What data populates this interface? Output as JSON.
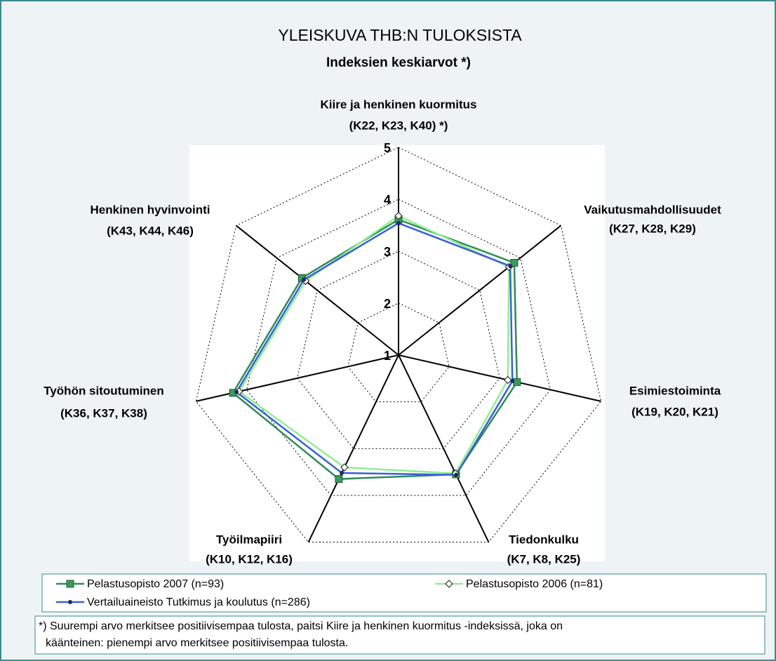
{
  "chart_data": {
    "type": "radar",
    "title": "YLEISKUVA THB:N TULOKSISTA",
    "subtitle": "Indeksien keskiarvot *)",
    "categories": [
      [
        "Kiire ja henkinen kuormitus",
        "(K22, K23, K40) *)"
      ],
      [
        "Vaikutusmahdollisuudet",
        "(K27, K28, K29)"
      ],
      [
        "Esimiestoiminta",
        "(K19, K20, K21)"
      ],
      [
        "Tiedonkulku",
        "(K7, K8, K25)"
      ],
      [
        "Työilmapiiri",
        "(K10, K12, K16)"
      ],
      [
        "Työhön sitoutuminen",
        "(K36, K37, K38)"
      ],
      [
        "Henkinen hyvinvointi",
        "(K43, K44, K46)"
      ]
    ],
    "series": [
      {
        "name": "Pelastusopisto 2007 (n=93)",
        "color": "#2e8b57",
        "marker": "square",
        "values": [
          3.61,
          3.85,
          3.34,
          3.55,
          3.65,
          4.27,
          3.38
        ]
      },
      {
        "name": "Pelastusopisto 2006 (n=81)",
        "color": "#90ee90",
        "marker": "diamond",
        "values": [
          3.68,
          3.72,
          3.16,
          3.53,
          3.4,
          4.15,
          3.29
        ]
      },
      {
        "name": "Vertailuaineisto Tutkimus ja koulutus (n=286)",
        "color": "#3a5fd9",
        "marker": "circle",
        "values": [
          3.54,
          3.75,
          3.25,
          3.56,
          3.52,
          4.2,
          3.33
        ]
      }
    ],
    "ylim": [
      1,
      5
    ],
    "yticks": [
      1,
      2,
      3,
      4,
      5
    ],
    "grid": true,
    "footnote": [
      "*) Suurempi arvo merkitsee positiivisempaa tulosta, paitsi Kiire ja henkinen kuormitus -indeksissä, joka on",
      "kääntеinen: pienempi arvo merkitsee positiivisempaa tulosta."
    ]
  }
}
